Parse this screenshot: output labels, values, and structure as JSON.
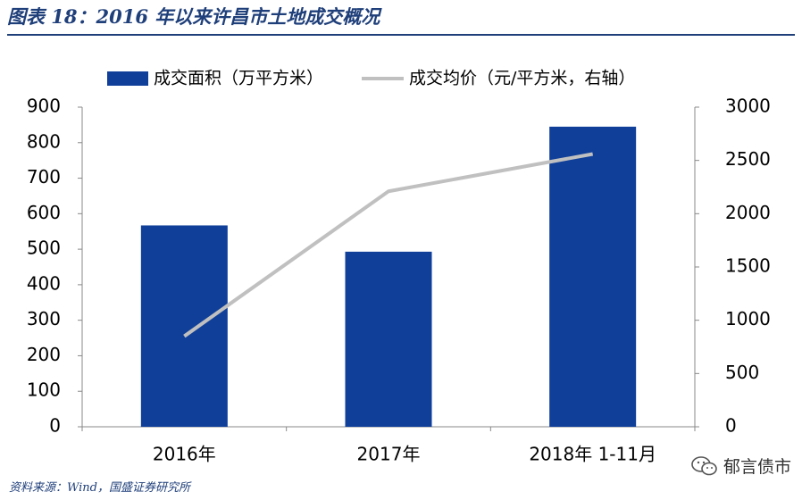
{
  "header": {
    "title": "图表 18：2016 年以来许昌市土地成交概况"
  },
  "footer": {
    "source": "资料来源：Wind，国盛证券研究所",
    "watermark": "郁言债市"
  },
  "colors": {
    "bar": "#0f3f99",
    "line": "#c0c0c0",
    "title": "#1f3f7a",
    "axis": "#888888",
    "text": "#000000"
  },
  "chart_data": {
    "type": "bar",
    "categories": [
      "2016年",
      "2017年",
      "2018年 1-11月"
    ],
    "series": [
      {
        "name": "成交面积（万平方米）",
        "type": "bar",
        "axis": "left",
        "values": [
          567,
          493,
          845
        ]
      },
      {
        "name": "成交均价（元/平方米，右轴）",
        "type": "line",
        "axis": "right",
        "values": [
          850,
          2210,
          2560
        ]
      }
    ],
    "y_left": {
      "range": [
        0,
        900
      ],
      "ticks": [
        "0",
        "100",
        "200",
        "300",
        "400",
        "500",
        "600",
        "700",
        "800",
        "900"
      ]
    },
    "y_right": {
      "range": [
        0,
        3000
      ],
      "ticks": [
        "0",
        "500",
        "1000",
        "1500",
        "2000",
        "2500",
        "3000"
      ]
    },
    "legend": {
      "position": "top"
    },
    "grid": false
  }
}
